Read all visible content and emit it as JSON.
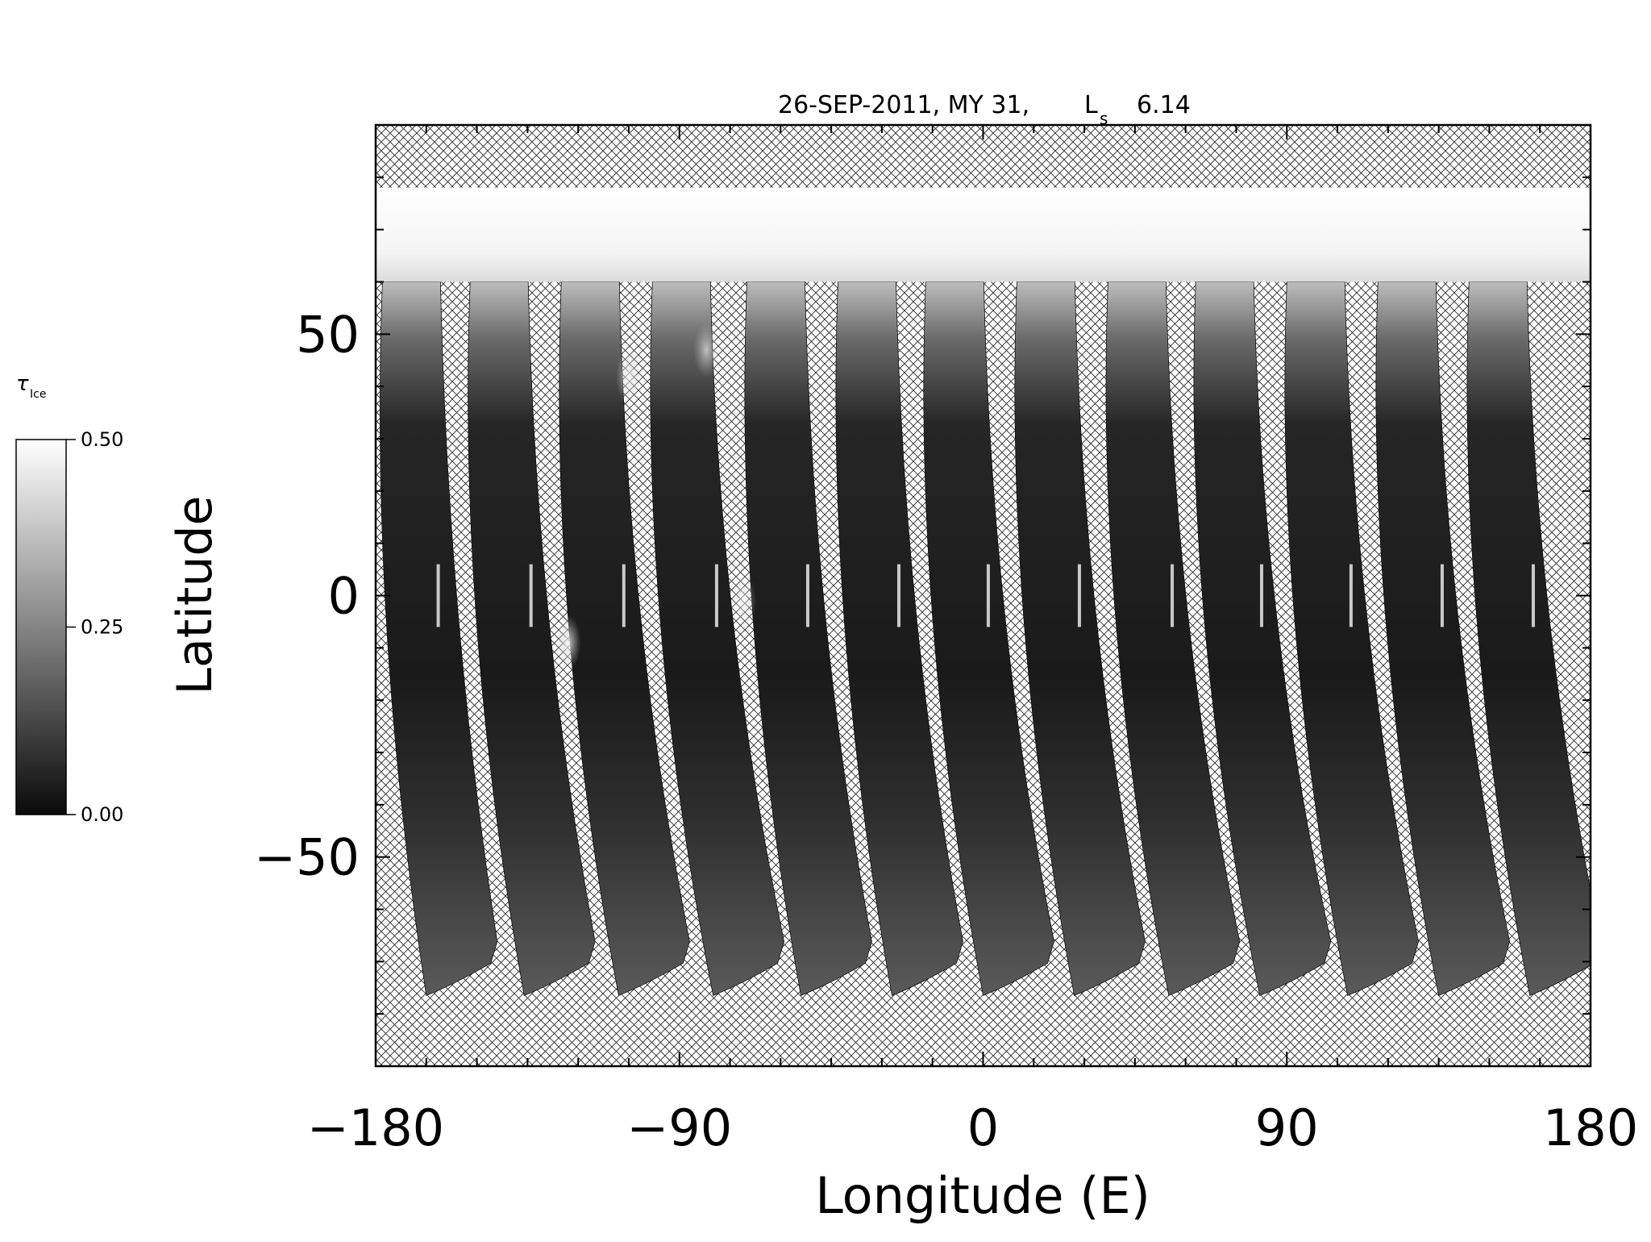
{
  "chart_data": {
    "type": "heatmap",
    "title": "26-SEP-2011, MY 31,",
    "title_ls_symbol": "L",
    "title_ls_subscript": "s",
    "title_ls_value": "6.14",
    "xlabel": "Longitude (E)",
    "ylabel": "Latitude",
    "xlim": [
      -180,
      180
    ],
    "ylim": [
      -90,
      90
    ],
    "x_ticks": [
      -180,
      -90,
      0,
      90,
      180
    ],
    "x_tick_labels": [
      "−180",
      "−90",
      "0",
      "90",
      "180"
    ],
    "y_ticks": [
      -50,
      0,
      50
    ],
    "y_tick_labels": [
      "−50",
      "0",
      "50"
    ],
    "grid": false,
    "colorbar": {
      "symbol": "τ",
      "subscript": "Ice",
      "range": [
        0.0,
        0.5
      ],
      "tick_labels": [
        "0.50",
        "0.25",
        "0.00"
      ],
      "colormap": "grayscale",
      "min_color": "#0a0a0a",
      "max_color": "#ffffff",
      "placement": "left"
    },
    "no_data_pattern": "crosshatch",
    "polar_cap_lat_range": [
      60,
      78
    ],
    "swaths": [
      {
        "lon_north": -178,
        "lon_south": -165,
        "lat_north": 78,
        "lat_south": -70
      },
      {
        "lon_north": -152,
        "lon_south": -136,
        "lat_north": 78,
        "lat_south": -70
      },
      {
        "lon_north": -125,
        "lon_south": -108,
        "lat_north": 78,
        "lat_south": -70
      },
      {
        "lon_north": -98,
        "lon_south": -80,
        "lat_north": 78,
        "lat_south": -70
      },
      {
        "lon_north": -70,
        "lon_south": -54,
        "lat_north": 78,
        "lat_south": -70
      },
      {
        "lon_north": -43,
        "lon_south": -27,
        "lat_north": 78,
        "lat_south": -70
      },
      {
        "lon_north": -17,
        "lon_south": 0,
        "lat_north": 78,
        "lat_south": -70
      },
      {
        "lon_north": 10,
        "lon_south": 27,
        "lat_north": 78,
        "lat_south": -70
      },
      {
        "lon_north": 37,
        "lon_south": 55,
        "lat_north": 78,
        "lat_south": -70
      },
      {
        "lon_north": 63,
        "lon_south": 82,
        "lat_north": 78,
        "lat_south": -70
      },
      {
        "lon_north": 90,
        "lon_south": 108,
        "lat_north": 78,
        "lat_south": -70
      },
      {
        "lon_north": 117,
        "lon_south": 135,
        "lat_north": 78,
        "lat_south": -70
      },
      {
        "lon_north": 144,
        "lon_south": 162,
        "lat_north": 78,
        "lat_south": -70
      }
    ],
    "bright_features": [
      {
        "lon": -123,
        "lat": -9,
        "tau": 0.45
      },
      {
        "lon": -105,
        "lat": 42,
        "tau": 0.4
      },
      {
        "lon": -82,
        "lat": 47,
        "tau": 0.35
      },
      {
        "lon": -71,
        "lat": -1,
        "tau": 0.3
      }
    ]
  }
}
